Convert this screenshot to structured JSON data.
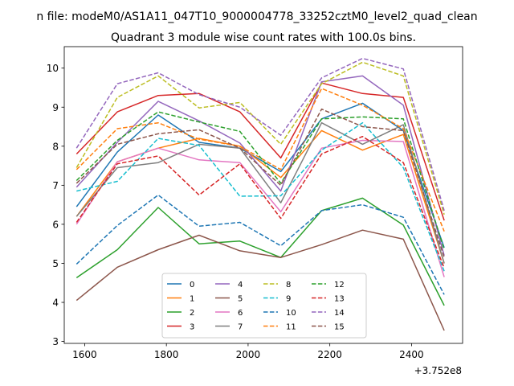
{
  "chart_data": {
    "type": "line",
    "suptitle": "n file: modeM0/AS1A11_047T10_9000004778_33252cztM0_level2_quad_clean",
    "title": "Quadrant 3 module wise count rates with 100.0s bins.",
    "xlabel": "",
    "ylabel": "",
    "x_offset_label": "+3.752e8",
    "x": [
      1580,
      1680,
      1780,
      1880,
      1980,
      2080,
      2180,
      2280,
      2380,
      2480
    ],
    "xlim": [
      1550,
      2525
    ],
    "ylim": [
      2.95,
      10.55
    ],
    "xticks": [
      1600,
      1800,
      2000,
      2200,
      2400
    ],
    "xtick_labels": [
      "1600",
      "1800",
      "2000",
      "2200",
      "2400"
    ],
    "yticks": [
      3,
      4,
      5,
      6,
      7,
      8,
      9,
      10
    ],
    "ytick_labels": [
      "3",
      "4",
      "5",
      "6",
      "7",
      "8",
      "9",
      "10"
    ],
    "legend_position": "lower-center",
    "series": [
      {
        "name": "0",
        "color": "#1f77b4",
        "dash": "solid",
        "values": [
          6.45,
          7.85,
          8.8,
          8.1,
          7.95,
          7.35,
          8.7,
          9.1,
          8.4,
          5.4
        ]
      },
      {
        "name": "1",
        "color": "#ff7f0e",
        "dash": "solid",
        "values": [
          6.2,
          7.6,
          7.95,
          8.2,
          8.0,
          7.2,
          8.4,
          7.9,
          8.3,
          5.0
        ]
      },
      {
        "name": "2",
        "color": "#2ca02c",
        "dash": "solid",
        "values": [
          4.63,
          5.35,
          6.43,
          5.5,
          5.57,
          5.15,
          6.35,
          6.67,
          5.98,
          3.92
        ]
      },
      {
        "name": "3",
        "color": "#d62728",
        "dash": "solid",
        "values": [
          7.8,
          8.88,
          9.3,
          9.35,
          8.88,
          7.7,
          9.62,
          9.35,
          9.25,
          6.1
        ]
      },
      {
        "name": "4",
        "color": "#9467bd",
        "dash": "solid",
        "values": [
          6.95,
          8.1,
          9.15,
          8.65,
          8.08,
          6.85,
          9.65,
          9.8,
          9.05,
          5.2
        ]
      },
      {
        "name": "5",
        "color": "#8c564b",
        "dash": "solid",
        "values": [
          4.05,
          4.9,
          5.35,
          5.72,
          5.32,
          5.15,
          5.48,
          5.85,
          5.62,
          3.28
        ]
      },
      {
        "name": "6",
        "color": "#e377c2",
        "dash": "solid",
        "values": [
          6.0,
          7.6,
          7.95,
          7.65,
          7.58,
          6.32,
          7.95,
          8.15,
          8.12,
          4.65
        ]
      },
      {
        "name": "7",
        "color": "#7f7f7f",
        "dash": "solid",
        "values": [
          6.2,
          7.45,
          7.58,
          8.05,
          7.95,
          6.55,
          8.6,
          8.05,
          8.55,
          5.0
        ]
      },
      {
        "name": "8",
        "color": "#bcbd22",
        "dash": "dashed",
        "values": [
          7.45,
          9.25,
          9.8,
          8.98,
          9.12,
          8.05,
          9.6,
          10.15,
          9.8,
          6.25
        ]
      },
      {
        "name": "9",
        "color": "#17becf",
        "dash": "dashed",
        "values": [
          6.85,
          7.1,
          8.2,
          8.02,
          6.72,
          6.73,
          7.9,
          8.6,
          7.45,
          4.8
        ]
      },
      {
        "name": "10",
        "color": "#1f77b4",
        "dash": "dashed",
        "values": [
          4.98,
          5.97,
          6.75,
          5.95,
          6.05,
          5.45,
          6.35,
          6.5,
          6.18,
          4.2
        ]
      },
      {
        "name": "11",
        "color": "#ff7f0e",
        "dash": "dashed",
        "values": [
          7.4,
          8.45,
          8.6,
          8.18,
          8.0,
          7.4,
          9.48,
          9.05,
          8.45,
          5.82
        ]
      },
      {
        "name": "12",
        "color": "#2ca02c",
        "dash": "dashed",
        "values": [
          7.12,
          8.15,
          8.88,
          8.62,
          8.38,
          7.05,
          8.7,
          8.75,
          8.7,
          5.35
        ]
      },
      {
        "name": "13",
        "color": "#d62728",
        "dash": "dashed",
        "values": [
          6.05,
          7.55,
          7.75,
          6.75,
          7.55,
          6.15,
          7.8,
          8.25,
          7.58,
          4.88
        ]
      },
      {
        "name": "14",
        "color": "#9467bd",
        "dash": "dashed",
        "values": [
          7.95,
          9.6,
          9.88,
          9.32,
          9.0,
          8.28,
          9.75,
          10.25,
          9.98,
          6.35
        ]
      },
      {
        "name": "15",
        "color": "#8c564b",
        "dash": "dashed",
        "values": [
          7.05,
          8.05,
          8.32,
          8.42,
          7.95,
          7.0,
          8.95,
          8.5,
          8.4,
          5.15
        ]
      }
    ]
  }
}
